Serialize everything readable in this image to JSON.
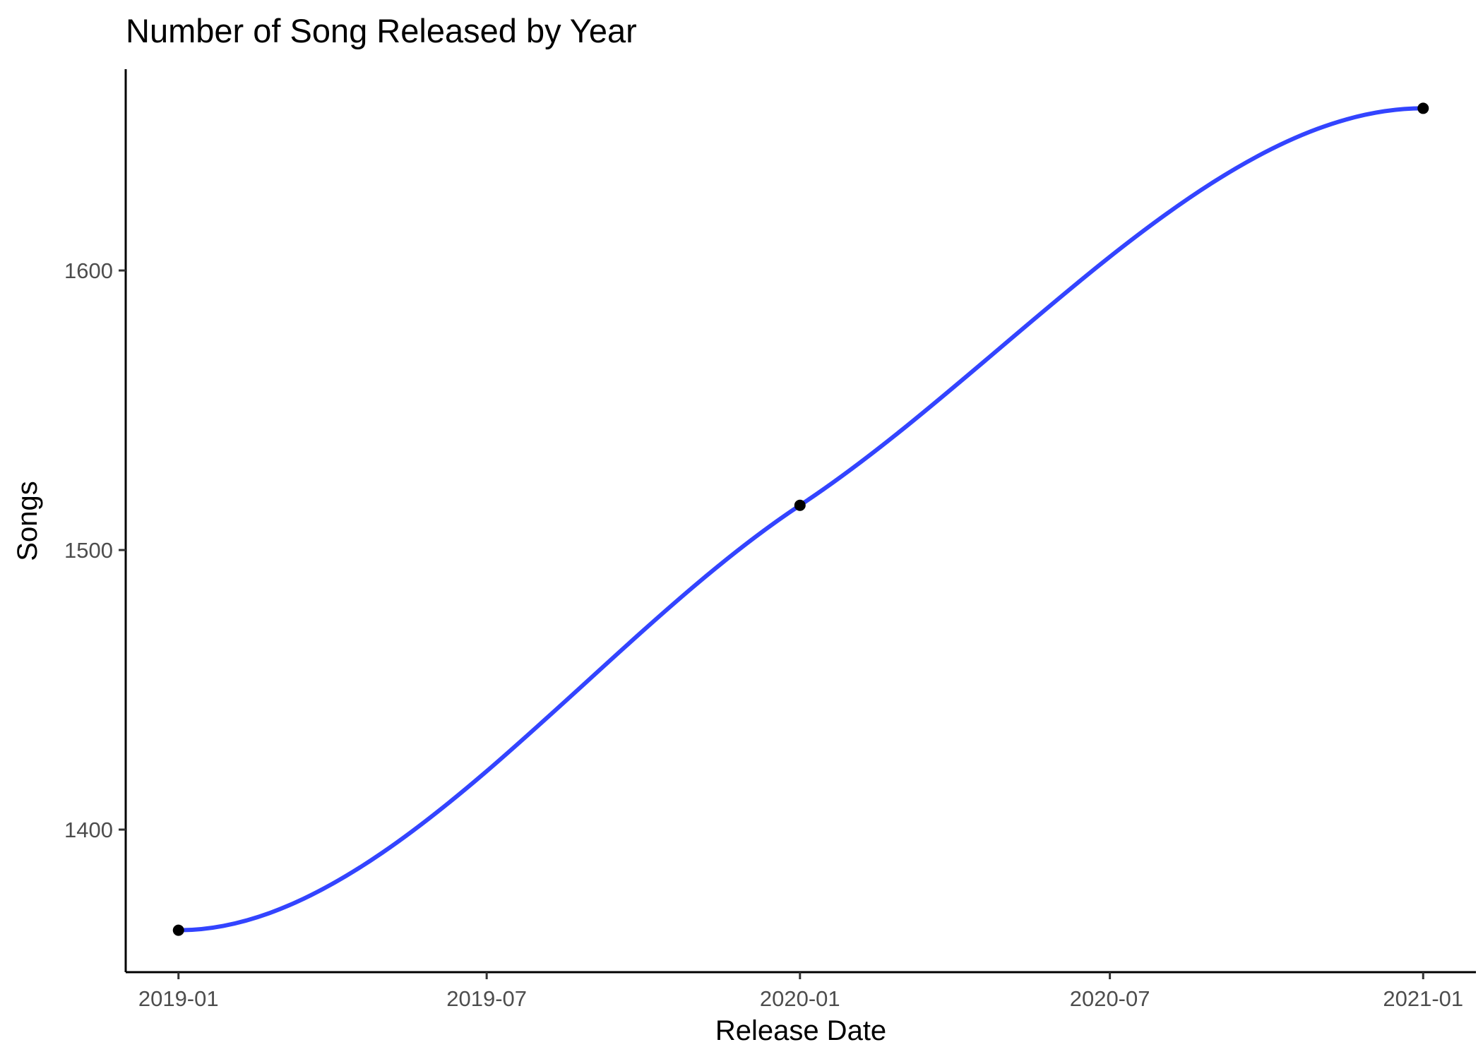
{
  "chart_data": {
    "type": "line",
    "title": "Number of Song Released by Year",
    "xlabel": "Release Date",
    "ylabel": "Songs",
    "x_tick_labels": [
      "2019-01",
      "2019-07",
      "2020-01",
      "2020-07",
      "2021-01"
    ],
    "x_ticks": [
      "2019-01-01",
      "2019-07-01",
      "2020-01-01",
      "2020-07-01",
      "2021-01-01"
    ],
    "y_ticks": [
      1400,
      1500,
      1600
    ],
    "xlim": [
      "2018-12-01",
      "2021-02-01"
    ],
    "ylim": [
      1349,
      1672
    ],
    "points": [
      {
        "x": "2019-01-01",
        "y": 1364
      },
      {
        "x": "2020-01-01",
        "y": 1516
      },
      {
        "x": "2021-01-01",
        "y": 1658
      }
    ],
    "smooth": true,
    "grid": false,
    "line_color": "#3344ff",
    "point_color": "#000000"
  }
}
